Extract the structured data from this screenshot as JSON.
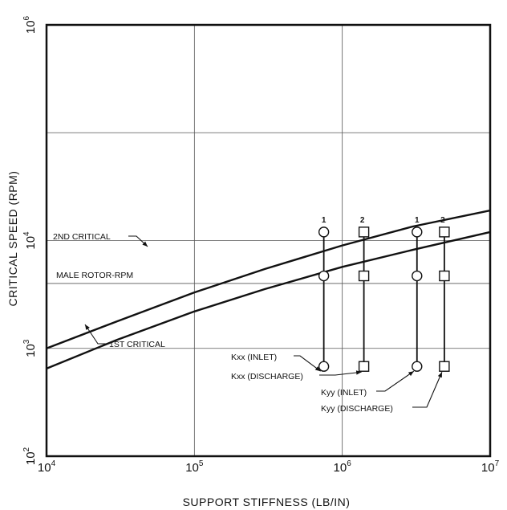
{
  "chart_data": {
    "type": "line",
    "xlabel": "SUPPORT STIFFNESS (LB/IN)",
    "ylabel": "CRITICAL SPEED (RPM)",
    "x_scale": "log",
    "y_scale": "log",
    "xlim": [
      10000,
      10000000
    ],
    "ylim": [
      100,
      1000000
    ],
    "grid": true,
    "x_ticks": [
      {
        "base": "10",
        "exp": "4",
        "value": 10000
      },
      {
        "base": "10",
        "exp": "5",
        "value": 100000
      },
      {
        "base": "10",
        "exp": "6",
        "value": 1000000
      },
      {
        "base": "10",
        "exp": "7",
        "value": 10000000
      }
    ],
    "y_ticks": [
      {
        "base": "10",
        "exp": "2",
        "value": 100
      },
      {
        "base": "10",
        "exp": "3",
        "value": 1000
      },
      {
        "base": "10",
        "exp": "4",
        "value": 10000
      },
      {
        "base": "10",
        "exp": "6",
        "value": 1000000
      }
    ],
    "series": [
      {
        "name": "2ND CRITICAL",
        "x": [
          10000,
          30000,
          100000,
          300000,
          1000000,
          3000000,
          10000000
        ],
        "y": [
          1000,
          1780,
          3300,
          5450,
          9000,
          13500,
          19000
        ]
      },
      {
        "name": "1ST CRITICAL",
        "x": [
          10000,
          30000,
          100000,
          300000,
          1000000,
          3000000,
          10000000
        ],
        "y": [
          650,
          1200,
          2200,
          3550,
          5700,
          8200,
          12000
        ]
      }
    ],
    "reference_lines": [
      {
        "label": "MALE ROTOR-RPM",
        "y": 4000
      }
    ],
    "stiffness_columns": [
      {
        "top_label": "1",
        "marker": "circle",
        "x": 750000,
        "y": [
          680,
          4700,
          12000
        ],
        "annotation": "Kxx (INLET)"
      },
      {
        "top_label": "2",
        "marker": "square",
        "x": 1400000,
        "y": [
          680,
          4700,
          12000
        ],
        "annotation": "Kxx (DISCHARGE)"
      },
      {
        "top_label": "1",
        "marker": "circle",
        "x": 3200000,
        "y": [
          680,
          4700,
          12000
        ],
        "annotation": "Kyy (INLET)"
      },
      {
        "top_label": "2",
        "marker": "square",
        "x": 4900000,
        "y": [
          680,
          4700,
          12000
        ],
        "annotation": "Kyy (DISCHARGE)"
      }
    ]
  },
  "colors": {
    "ink": "#111111",
    "grid": "#555555",
    "background": "#ffffff"
  }
}
